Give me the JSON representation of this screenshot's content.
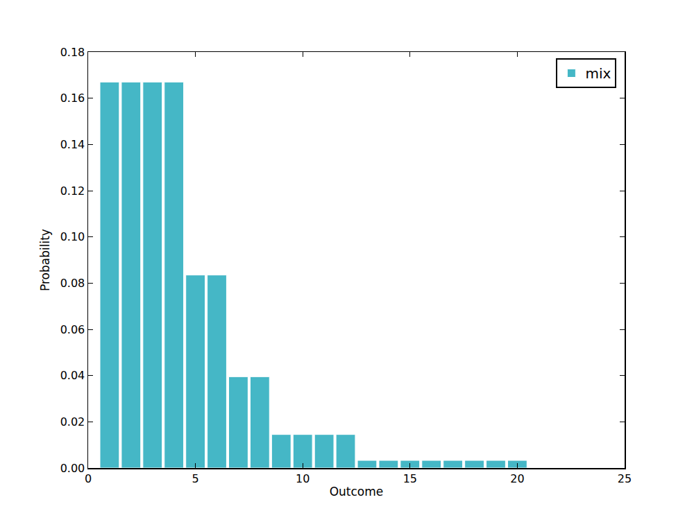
{
  "chart_data": {
    "type": "bar",
    "x": [
      1,
      2,
      3,
      4,
      5,
      6,
      7,
      8,
      9,
      10,
      11,
      12,
      13,
      14,
      15,
      16,
      17,
      18,
      19,
      20
    ],
    "series": [
      {
        "name": "mix",
        "color": "#45b7c6",
        "values": [
          0.167,
          0.167,
          0.167,
          0.167,
          0.0835,
          0.0835,
          0.0395,
          0.0395,
          0.0145,
          0.0145,
          0.0145,
          0.0145,
          0.0033,
          0.0033,
          0.0033,
          0.0033,
          0.0033,
          0.0033,
          0.0033,
          0.0033
        ]
      }
    ],
    "x_label": "Outcome",
    "y_label": "Probability",
    "xlim": [
      0,
      25
    ],
    "xticks": [
      0,
      5,
      10,
      15,
      20,
      25
    ],
    "ylim": [
      0,
      0.18
    ],
    "yticks": [
      {
        "value": 0,
        "label": "0.00"
      },
      {
        "value": 0.02,
        "label": "0.02"
      },
      {
        "value": 0.04,
        "label": "0.04"
      },
      {
        "value": 0.06,
        "label": "0.06"
      },
      {
        "value": 0.08,
        "label": "0.08"
      },
      {
        "value": 0.1,
        "label": "0.10"
      },
      {
        "value": 0.12,
        "label": "0.12"
      },
      {
        "value": 0.14,
        "label": "0.14"
      },
      {
        "value": 0.16,
        "label": "0.16"
      },
      {
        "value": 0.18,
        "label": "0.18"
      }
    ],
    "legend": "upper right",
    "grid": false
  }
}
